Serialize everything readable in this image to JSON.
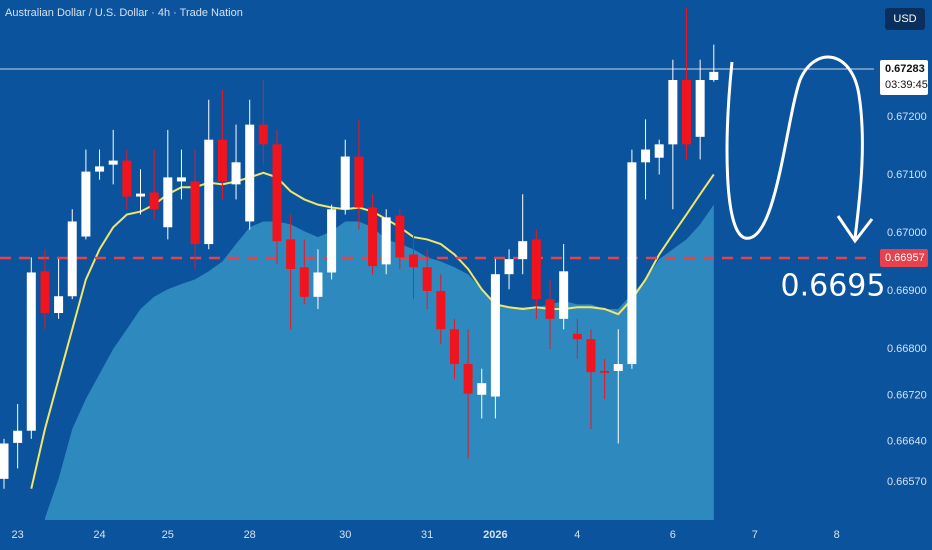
{
  "chart_data": {
    "type": "candlestick",
    "title": "Australian Dollar / U.S. Dollar · 4h · Trade Nation",
    "currency_button": "USD",
    "categories": [
      null,
      "23",
      null,
      null,
      null,
      null,
      null,
      "24",
      null,
      null,
      null,
      null,
      "25",
      null,
      null,
      null,
      null,
      null,
      "28",
      null,
      null,
      null,
      null,
      null,
      null,
      "30",
      null,
      null,
      null,
      null,
      null,
      "31",
      null,
      null,
      null,
      null,
      "2026",
      null,
      null,
      null,
      null,
      null,
      "4",
      null,
      null,
      null,
      null,
      null,
      null,
      "6",
      null,
      null,
      null,
      null,
      null,
      "7",
      null,
      null,
      null,
      null,
      null,
      "8",
      null,
      null
    ],
    "candles": {
      "up_color": "#ffffff",
      "down_color": "#f0141f",
      "open": [
        0.66576,
        0.66638,
        0.66659,
        0.66934,
        0.66862,
        0.66891,
        0.66994,
        0.67106,
        0.67118,
        0.67125,
        0.67063,
        0.6707,
        0.6701,
        0.67089,
        0.67089,
        0.66981,
        0.67161,
        0.67084,
        0.6702,
        0.67187,
        0.67153,
        0.66989,
        0.66941,
        0.6689,
        0.66932,
        0.67041,
        0.67132,
        0.67044,
        0.66946,
        0.6703,
        0.66963,
        0.66941,
        0.669,
        0.66834,
        0.66774,
        0.66721,
        0.66718,
        0.66929,
        0.66955,
        0.66989,
        0.66886,
        0.66852,
        0.66826,
        0.66817,
        0.66762,
        0.66762,
        0.66774,
        0.67122,
        0.6713,
        0.67153,
        0.67264,
        0.67166,
        0.67264,
        null,
        null,
        null,
        null,
        null,
        null,
        null,
        null,
        null,
        null,
        null
      ],
      "high": [
        0.66645,
        0.66705,
        0.66958,
        0.66972,
        0.66955,
        0.67041,
        0.67144,
        0.67144,
        0.67178,
        0.67144,
        0.6711,
        0.67144,
        0.67178,
        0.67144,
        0.67144,
        0.6723,
        0.67247,
        0.67187,
        0.6723,
        0.67264,
        0.67178,
        0.67032,
        0.66989,
        0.66972,
        0.67049,
        0.67161,
        0.67196,
        0.67067,
        0.67041,
        0.67041,
        0.66998,
        0.66972,
        0.66929,
        0.66852,
        0.66834,
        0.66766,
        0.66955,
        0.66972,
        0.67067,
        0.67006,
        0.6692,
        0.66981,
        0.66852,
        0.66834,
        0.66783,
        0.66834,
        0.67144,
        0.67196,
        0.67161,
        0.67299,
        0.67388,
        0.67299,
        0.67325,
        null,
        null,
        null,
        null,
        null,
        null,
        null,
        null,
        null,
        null,
        null
      ],
      "low": [
        0.66559,
        0.66594,
        0.66645,
        0.66834,
        0.66852,
        0.66886,
        0.66989,
        0.67092,
        0.67084,
        0.67041,
        0.67032,
        0.67024,
        0.66989,
        0.67058,
        0.66938,
        0.66972,
        0.67058,
        0.67058,
        0.67006,
        0.67118,
        0.66946,
        0.66834,
        0.66877,
        0.66869,
        0.6692,
        0.67032,
        0.67006,
        0.66929,
        0.66929,
        0.66938,
        0.66886,
        0.66869,
        0.66808,
        0.66748,
        0.66611,
        0.6668,
        0.6668,
        0.66903,
        0.66929,
        0.66852,
        0.668,
        0.66834,
        0.66783,
        0.66662,
        0.66714,
        0.66637,
        0.66766,
        0.67058,
        0.67101,
        0.67041,
        0.67127,
        0.67127,
        0.67261,
        null,
        null,
        null,
        null,
        null,
        null,
        null,
        null,
        null,
        null,
        null
      ],
      "close": [
        0.66637,
        0.66659,
        0.66932,
        0.66862,
        0.66891,
        0.6702,
        0.67106,
        0.67115,
        0.67125,
        0.67063,
        0.67068,
        0.67041,
        0.67096,
        0.67096,
        0.66981,
        0.67161,
        0.67089,
        0.67122,
        0.67187,
        0.67153,
        0.66986,
        0.66938,
        0.6689,
        0.66932,
        0.67041,
        0.67132,
        0.67044,
        0.66943,
        0.67027,
        0.66958,
        0.66941,
        0.669,
        0.66834,
        0.66774,
        0.66723,
        0.66741,
        0.66929,
        0.66955,
        0.66986,
        0.66886,
        0.66852,
        0.66934,
        0.66817,
        0.6676,
        0.66759,
        0.66774,
        0.67122,
        0.67144,
        0.67153,
        0.67264,
        0.67153,
        0.67264,
        0.67278,
        null,
        null,
        null,
        null,
        null,
        null,
        null,
        null,
        null,
        null,
        null
      ]
    },
    "moving_average": {
      "color": "#f2e66a",
      "values": [
        null,
        null,
        0.66559,
        0.66662,
        0.66748,
        0.66834,
        0.6692,
        0.66972,
        0.6701,
        0.67032,
        0.67037,
        0.67049,
        0.67067,
        0.67079,
        0.67079,
        0.67087,
        0.67084,
        0.67089,
        0.67096,
        0.67104,
        0.67096,
        0.67072,
        0.67058,
        0.67049,
        0.67044,
        0.67041,
        0.67044,
        0.67037,
        0.67024,
        0.6701,
        0.66993,
        0.66989,
        0.66981,
        0.66963,
        0.66938,
        0.66903,
        0.66877,
        0.66872,
        0.66869,
        0.66872,
        0.66869,
        0.66869,
        0.66872,
        0.66872,
        0.66869,
        0.6686,
        0.66886,
        0.6692,
        0.66963,
        0.66998,
        0.67032,
        0.67067,
        0.67101,
        null,
        null,
        null,
        null,
        null,
        null,
        null,
        null,
        null,
        null,
        null
      ]
    },
    "area": {
      "color": "#3b9cca",
      "values": [
        null,
        null,
        null,
        0.66508,
        0.66576,
        0.66662,
        0.66714,
        0.66757,
        0.668,
        0.66834,
        0.66869,
        0.6689,
        0.66903,
        0.66912,
        0.6692,
        0.66934,
        0.66951,
        0.66981,
        0.6701,
        0.6702,
        0.6702,
        0.67015,
        0.67003,
        0.66993,
        0.67003,
        0.6702,
        0.6702,
        0.6701,
        0.66989,
        0.66981,
        0.66972,
        0.66958,
        0.66951,
        0.66941,
        0.66929,
        0.66903,
        0.66877,
        0.66872,
        0.66872,
        0.66872,
        0.66877,
        0.66883,
        0.66877,
        0.66877,
        0.66869,
        0.66869,
        0.66895,
        0.6692,
        0.66955,
        0.66972,
        0.66989,
        0.67015,
        0.67049,
        null,
        null,
        null,
        null,
        null,
        null,
        null,
        null,
        null,
        null,
        null
      ]
    },
    "ylim": [
      0.66505,
      0.67402
    ],
    "yticks": [
      {
        "value": 0.6657,
        "label": "0.66570"
      },
      {
        "value": 0.6664,
        "label": "0.66640"
      },
      {
        "value": 0.6672,
        "label": "0.66720"
      },
      {
        "value": 0.668,
        "label": "0.66800"
      },
      {
        "value": 0.669,
        "label": "0.66900"
      },
      {
        "value": 0.67,
        "label": "0.67000"
      },
      {
        "value": 0.671,
        "label": "0.67100"
      },
      {
        "value": 0.672,
        "label": "0.67200"
      }
    ],
    "grid": false,
    "last_price": {
      "value": 0.67283,
      "label": "0.67283",
      "color": "#c9d6e6"
    },
    "countdown": "03:39:45",
    "level_line": {
      "value": 0.66957,
      "label": "0.66957",
      "color": "#e8414b"
    },
    "annotation": "0.6695"
  }
}
